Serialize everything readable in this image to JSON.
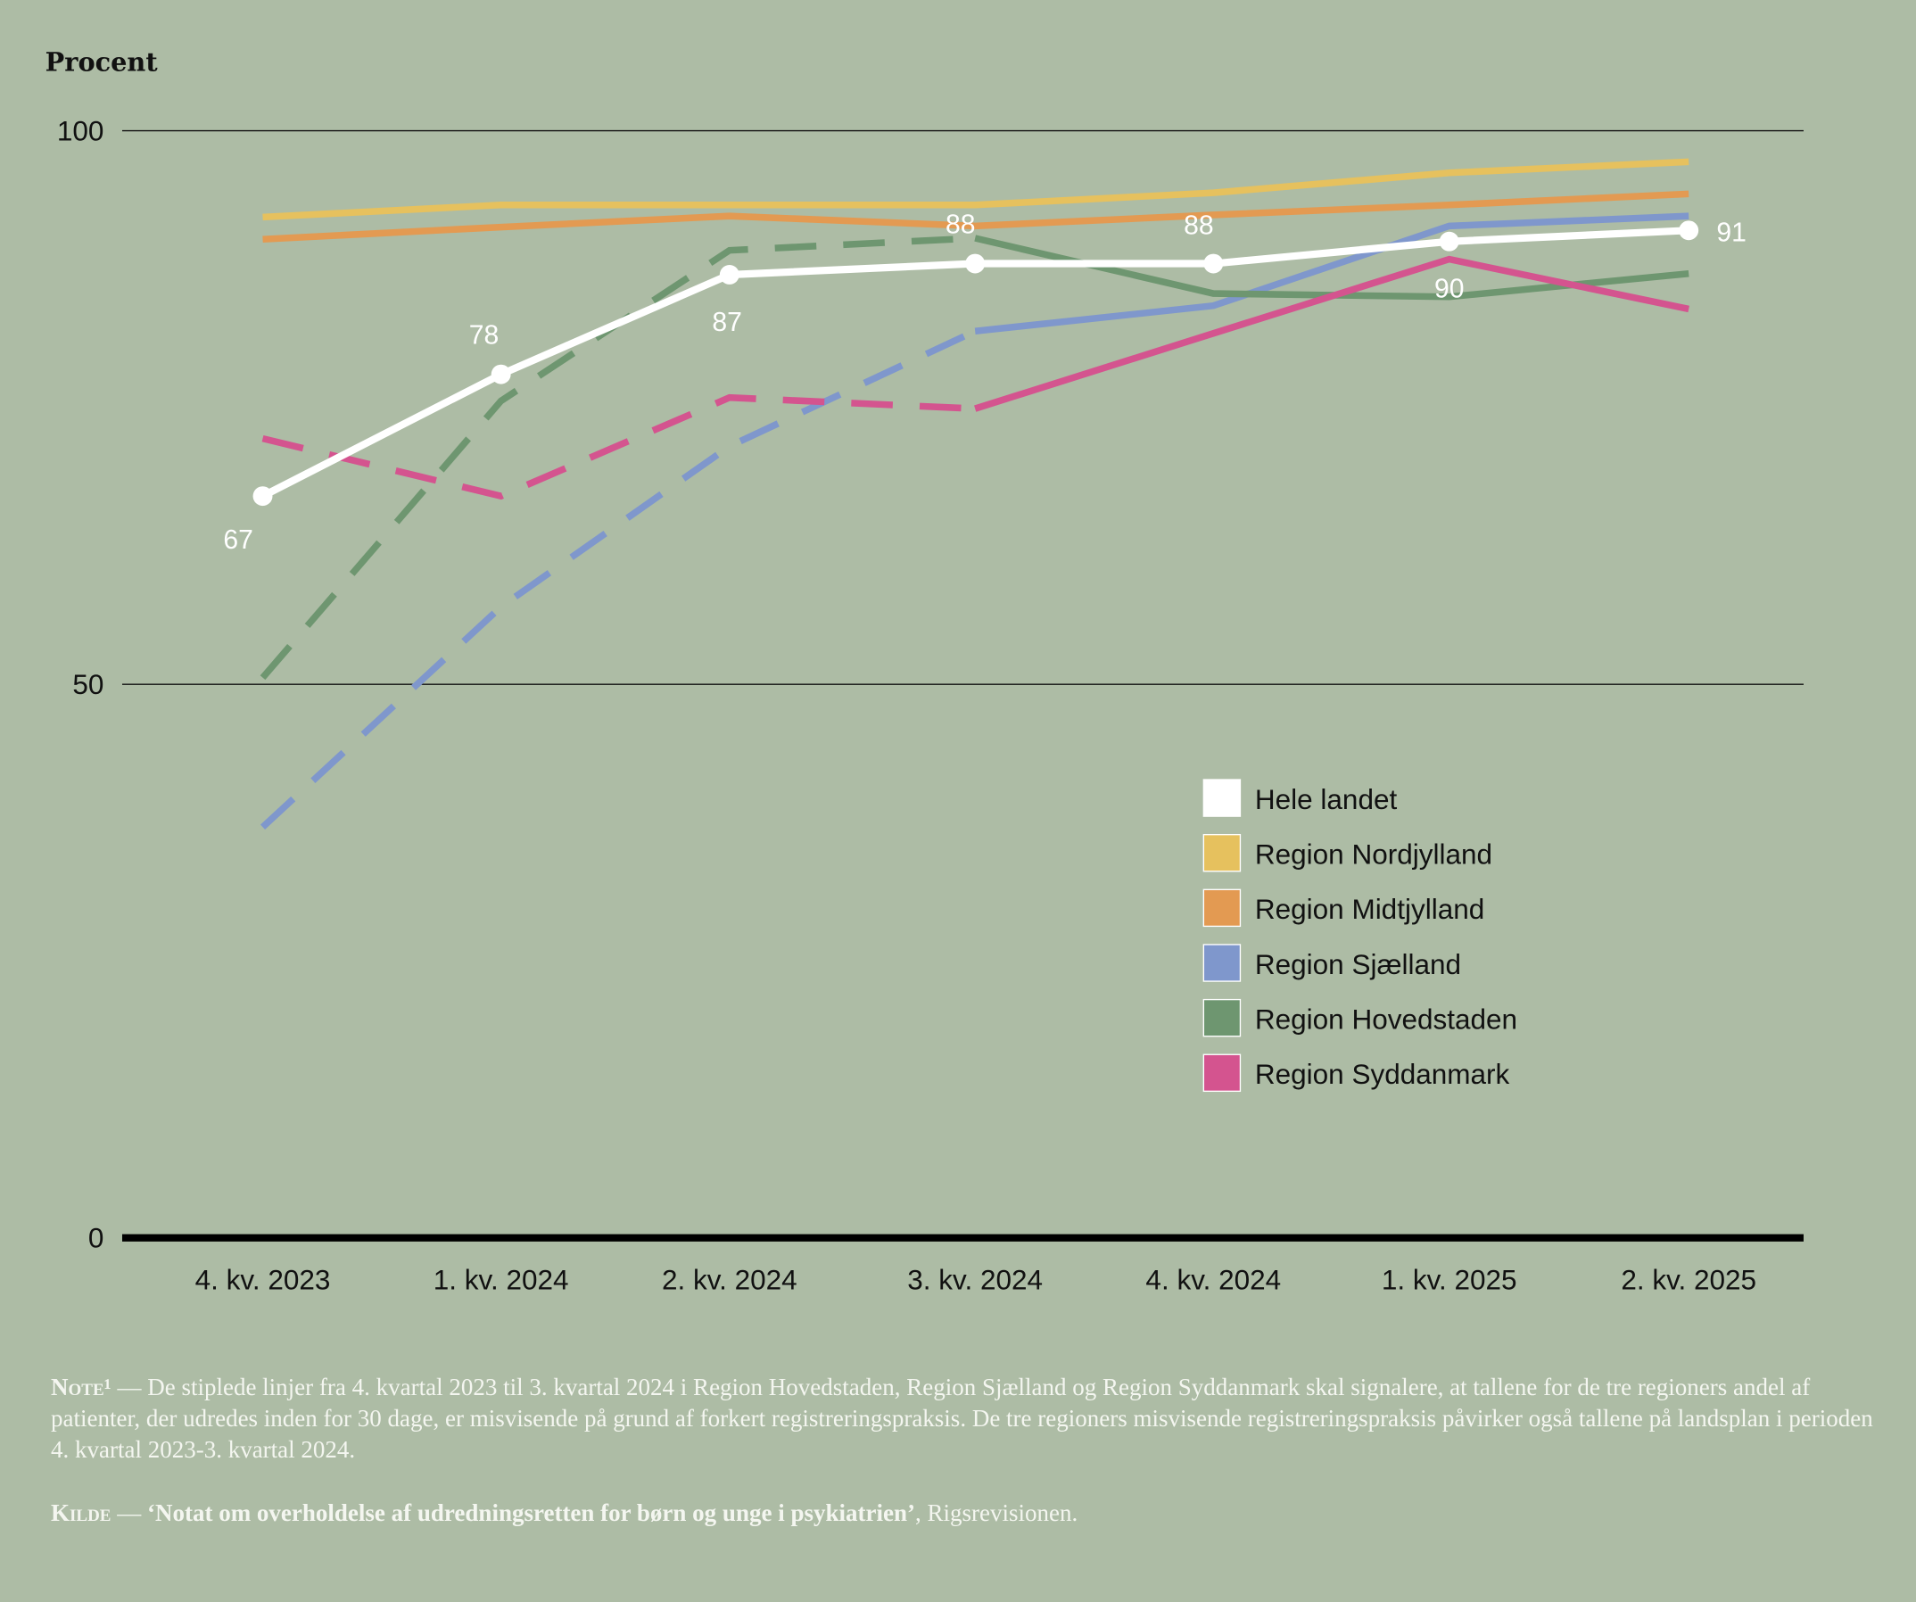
{
  "chart_data": {
    "type": "line",
    "ylabel": "Procent",
    "ylim": [
      0,
      100
    ],
    "yticks": [
      0,
      50,
      100
    ],
    "grid": true,
    "legend_placement": "center-right",
    "categories": [
      "4. kv. 2023",
      "1. kv. 2024",
      "2. kv. 2024",
      "3. kv. 2024",
      "4. kv. 2024",
      "1. kv. 2025",
      "2. kv. 2025"
    ],
    "dashed_until_index": 3,
    "series": [
      {
        "name": "Region Nordjylland",
        "color": "#e6c15e",
        "dashed": false,
        "values": [
          92.2,
          93.3,
          93.3,
          93.3,
          94.4,
          96.2,
          97.2
        ]
      },
      {
        "name": "Region Midtjylland",
        "color": "#e39a52",
        "dashed": false,
        "values": [
          90.2,
          91.3,
          92.3,
          91.4,
          92.4,
          93.3,
          94.3
        ]
      },
      {
        "name": "Region Sjælland",
        "color": "#7f97cc",
        "dashed": true,
        "values": [
          37.1,
          57,
          71.5,
          81.9,
          84.2,
          91.4,
          92.3
        ]
      },
      {
        "name": "Region Hovedstaden",
        "color": "#6e9670",
        "dashed": true,
        "values": [
          50.6,
          75.6,
          89.2,
          90.3,
          85.3,
          85,
          87.1
        ]
      },
      {
        "name": "Region Syddanmark",
        "color": "#d4548f",
        "dashed": true,
        "values": [
          72.2,
          67,
          75.9,
          74.9,
          81.7,
          88.4,
          83.9
        ]
      },
      {
        "name": "Hele landet",
        "color": "#ffffff",
        "dashed": false,
        "values": [
          67,
          78,
          87,
          88,
          88,
          90,
          91
        ],
        "labels": [
          "67",
          "78",
          "87",
          "88",
          "88",
          "90",
          "91"
        ]
      }
    ],
    "legend_order": [
      "Hele landet",
      "Region Nordjylland",
      "Region Midtjylland",
      "Region Sjælland",
      "Region Hovedstaden",
      "Region Syddanmark"
    ]
  },
  "notes": {
    "note_label": "Note¹",
    "note_text": " — De stiplede linjer fra 4. kvartal 2023 til 3. kvartal 2024 i Region Hovedstaden, Region Sjælland og Region Syddanmark skal signalere, at tallene for de tre regioners andel af patienter, der udredes inden for 30 dage, er misvisende på grund af forkert registrerings­praksis. De tre regioners misvisende registreringspraksis påvirker også tallene på landsplan i perioden 4. kvartal 2023-3. kvartal 2024.",
    "source_label": "Kilde",
    "source_sep": " — ",
    "source_title": "‘Notat om overholdelse af udredningsretten for børn og unge i psykiatrien’",
    "source_rest": ", Rigsrevisionen."
  }
}
